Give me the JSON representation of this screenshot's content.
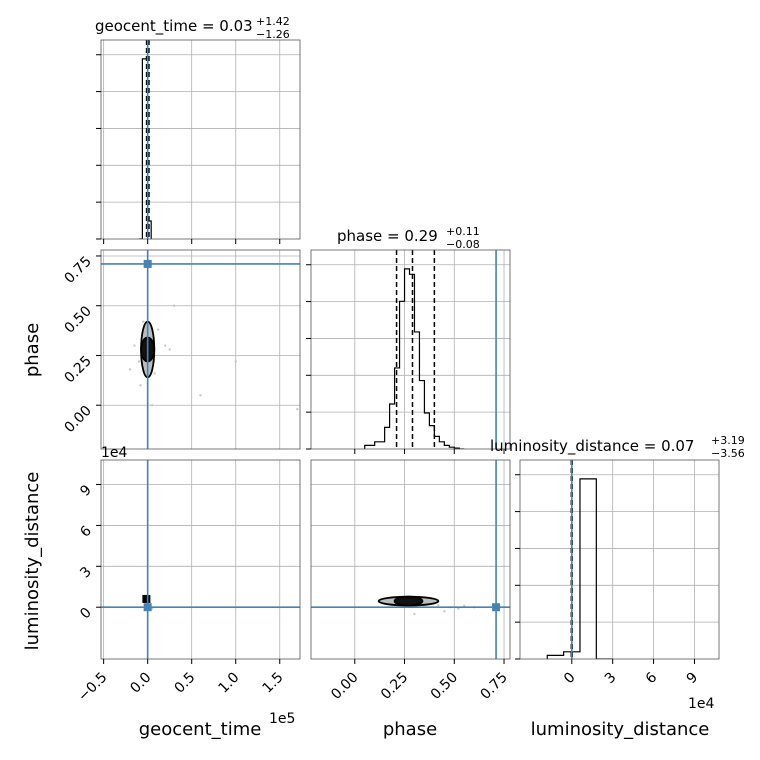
{
  "chart_data": {
    "type": "corner",
    "parameters": [
      "geocent_time",
      "phase",
      "luminosity_distance"
    ],
    "titles": [
      {
        "name": "geocent_time",
        "median": "0.03",
        "plus": "+1.42",
        "minus": "−1.26"
      },
      {
        "name": "phase",
        "median": "0.29",
        "plus": "+0.11",
        "minus": "−0.08"
      },
      {
        "name": "luminosity_distance",
        "median": "0.07",
        "plus": "+3.19",
        "minus": "−3.56"
      }
    ],
    "axis_labels": {
      "x": [
        "geocent_time",
        "phase",
        "luminosity_distance"
      ],
      "y": [
        "phase",
        "luminosity_distance"
      ]
    },
    "offset_labels": {
      "geocent_time_x": "1e5",
      "luminosity_distance_x": "1e4",
      "luminosity_distance_y": "1e4"
    },
    "ranges": {
      "geocent_time": [
        -0.53,
        1.73
      ],
      "phase": [
        -0.22,
        0.78
      ],
      "luminosity_distance": [
        -3.8,
        10.8
      ]
    },
    "ticks": {
      "geocent_time": {
        "values": [
          -0.5,
          0.0,
          0.5,
          1.0,
          1.5
        ],
        "labels": [
          "−0.5",
          "0.0",
          "0.5",
          "1.0",
          "1.5"
        ]
      },
      "phase": {
        "values": [
          0.0,
          0.25,
          0.5,
          0.75
        ],
        "labels": [
          "0.00",
          "0.25",
          "0.50",
          "0.75"
        ]
      },
      "luminosity_distance": {
        "values": [
          0,
          3,
          6,
          9
        ],
        "labels": [
          "0",
          "3",
          "6",
          "9"
        ]
      }
    },
    "truths": {
      "geocent_time": 0.0,
      "phase": 0.71,
      "luminosity_distance": 0.0
    },
    "truth_color": "#4682b4",
    "line_color": "#000000",
    "quantiles": {
      "geocent_time": [
        -1.23,
        0.03,
        1.45
      ],
      "phase": [
        0.21,
        0.29,
        0.4
      ],
      "luminosity_distance": [
        -3.49,
        0.07,
        3.26
      ]
    },
    "hist_1d": {
      "geocent_time": {
        "edges": [
          -0.1,
          -0.06,
          0.0,
          0.04
        ],
        "values": [
          0.0,
          1.0,
          0.1
        ]
      },
      "phase": {
        "edges": [
          0.05,
          0.1,
          0.15,
          0.175,
          0.2,
          0.225,
          0.25,
          0.275,
          0.3,
          0.325,
          0.35,
          0.375,
          0.4,
          0.425,
          0.45,
          0.475,
          0.5,
          0.525,
          0.55
        ],
        "values": [
          0.02,
          0.04,
          0.12,
          0.25,
          0.45,
          0.82,
          1.0,
          0.97,
          0.65,
          0.38,
          0.2,
          0.13,
          0.07,
          0.04,
          0.02,
          0.01,
          0.005,
          0.0
        ]
      },
      "luminosity_distance": {
        "edges": [
          -1.8,
          -0.6,
          0.6,
          1.8,
          3.0
        ],
        "values": [
          0.02,
          0.04,
          1.0,
          0.0
        ]
      }
    },
    "contours_2d": [
      {
        "row": 1,
        "col": 0,
        "center": [
          0.0,
          0.28
        ],
        "half_widths": [
          [
            0.12,
            0.14
          ],
          [
            0.06,
            0.06
          ]
        ]
      },
      {
        "row": 2,
        "col": 1,
        "center": [
          0.27,
          0.45
        ],
        "half_widths": [
          [
            0.15,
            0.5
          ],
          [
            0.07,
            0.2
          ]
        ]
      }
    ],
    "scatter_2d": [
      {
        "row": 1,
        "col": 0,
        "points": [
          [
            -0.15,
            0.3
          ],
          [
            -0.1,
            0.22
          ],
          [
            0.3,
            0.5
          ],
          [
            0.6,
            0.05
          ],
          [
            1.0,
            0.22
          ],
          [
            1.7,
            -0.02
          ],
          [
            0.12,
            0.38
          ],
          [
            -0.08,
            0.1
          ],
          [
            0.2,
            0.3
          ],
          [
            -0.2,
            0.18
          ],
          [
            0.05,
            0.0
          ],
          [
            0.08,
            0.16
          ],
          [
            -0.05,
            0.42
          ],
          [
            0.25,
            0.28
          ]
        ]
      },
      {
        "row": 2,
        "col": 1,
        "points": [
          [
            0.36,
            0.3
          ],
          [
            0.42,
            0.15
          ],
          [
            0.48,
            0.0
          ],
          [
            0.52,
            -0.1
          ],
          [
            0.6,
            0.0
          ],
          [
            0.45,
            -0.3
          ],
          [
            0.18,
            0.2
          ],
          [
            0.3,
            -0.5
          ],
          [
            0.55,
            0.1
          ],
          [
            0.4,
            0.6
          ]
        ]
      },
      {
        "row": 2,
        "col": 0,
        "points": [
          [
            -0.02,
            0.1
          ],
          [
            0.02,
            0.4
          ],
          [
            0.05,
            -0.1
          ]
        ]
      }
    ],
    "grid": true
  }
}
